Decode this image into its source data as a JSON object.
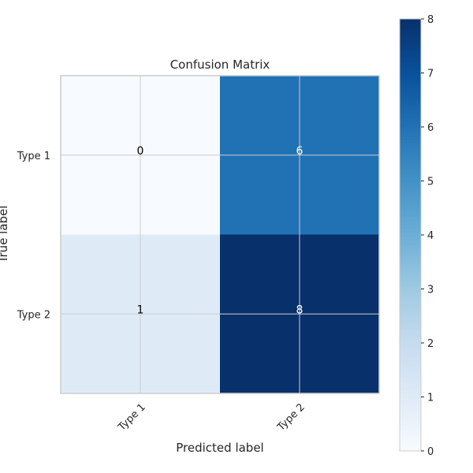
{
  "chart_data": {
    "type": "heatmap",
    "title": "Confusion Matrix",
    "xlabel": "Predicted label",
    "ylabel": "True label",
    "x_categories": [
      "Type 1",
      "Type 2"
    ],
    "y_categories": [
      "Type 1",
      "Type 2"
    ],
    "values": [
      [
        0,
        6
      ],
      [
        1,
        8
      ]
    ],
    "colormap": "Blues",
    "colorbar": {
      "min": 0,
      "max": 8,
      "ticks": [
        0,
        1,
        2,
        3,
        4,
        5,
        6,
        7,
        8
      ]
    },
    "grid": true
  },
  "colors": {
    "grid": "#cccccc",
    "frame": "#cccccc",
    "text_dark": "#000000",
    "text_light": "#ffffff",
    "tick_text": "#262626"
  }
}
